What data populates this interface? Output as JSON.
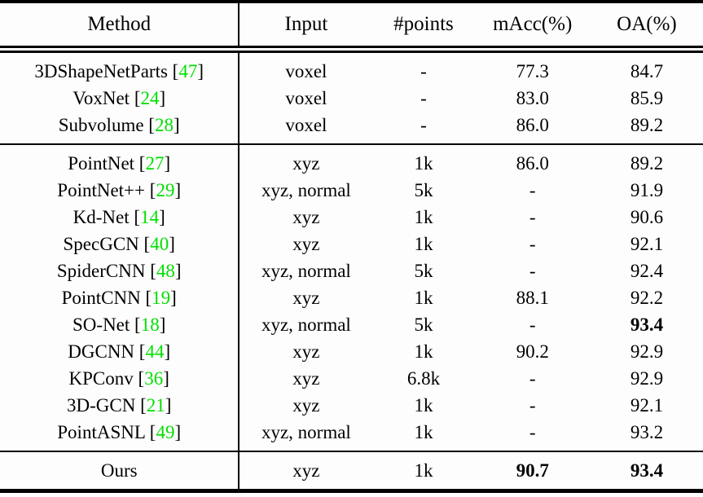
{
  "table": {
    "columns": [
      "Method",
      "Input",
      "#points",
      "mAcc(%)",
      "OA(%)"
    ],
    "accent_green": "#00e000",
    "sections": [
      {
        "rows": [
          {
            "method": "3DShapeNetParts",
            "cite": "47",
            "input": "voxel",
            "points": "-",
            "macc": "77.3",
            "oa": "84.7"
          },
          {
            "method": "VoxNet",
            "cite": "24",
            "input": "voxel",
            "points": "-",
            "macc": "83.0",
            "oa": "85.9"
          },
          {
            "method": "Subvolume",
            "cite": "28",
            "input": "voxel",
            "points": "-",
            "macc": "86.0",
            "oa": "89.2"
          }
        ]
      },
      {
        "rows": [
          {
            "method": "PointNet",
            "cite": "27",
            "input": "xyz",
            "points": "1k",
            "macc": "86.0",
            "oa": "89.2"
          },
          {
            "method": "PointNet++",
            "cite": "29",
            "input": "xyz, normal",
            "points": "5k",
            "macc": "-",
            "oa": "91.9"
          },
          {
            "method": "Kd-Net",
            "cite": "14",
            "input": "xyz",
            "points": "1k",
            "macc": "-",
            "oa": "90.6"
          },
          {
            "method": "SpecGCN",
            "cite": "40",
            "input": "xyz",
            "points": "1k",
            "macc": "-",
            "oa": "92.1"
          },
          {
            "method": "SpiderCNN",
            "cite": "48",
            "input": "xyz, normal",
            "points": "5k",
            "macc": "-",
            "oa": "92.4"
          },
          {
            "method": "PointCNN",
            "cite": "19",
            "input": "xyz",
            "points": "1k",
            "macc": "88.1",
            "oa": "92.2"
          },
          {
            "method": "SO-Net",
            "cite": "18",
            "input": "xyz, normal",
            "points": "5k",
            "macc": "-",
            "oa": "93.4",
            "oa_bold": true
          },
          {
            "method": "DGCNN",
            "cite": "44",
            "input": "xyz",
            "points": "1k",
            "macc": "90.2",
            "oa": "92.9"
          },
          {
            "method": "KPConv",
            "cite": "36",
            "input": "xyz",
            "points": "6.8k",
            "macc": "-",
            "oa": "92.9"
          },
          {
            "method": "3D-GCN",
            "cite": "21",
            "input": "xyz",
            "points": "1k",
            "macc": "-",
            "oa": "92.1"
          },
          {
            "method": "PointASNL",
            "cite": "49",
            "input": "xyz, normal",
            "points": "1k",
            "macc": "-",
            "oa": "93.2"
          }
        ]
      },
      {
        "rows": [
          {
            "method": "Ours",
            "cite": null,
            "input": "xyz",
            "points": "1k",
            "macc": "90.7",
            "macc_bold": true,
            "oa": "93.4",
            "oa_bold": true
          }
        ]
      }
    ]
  }
}
